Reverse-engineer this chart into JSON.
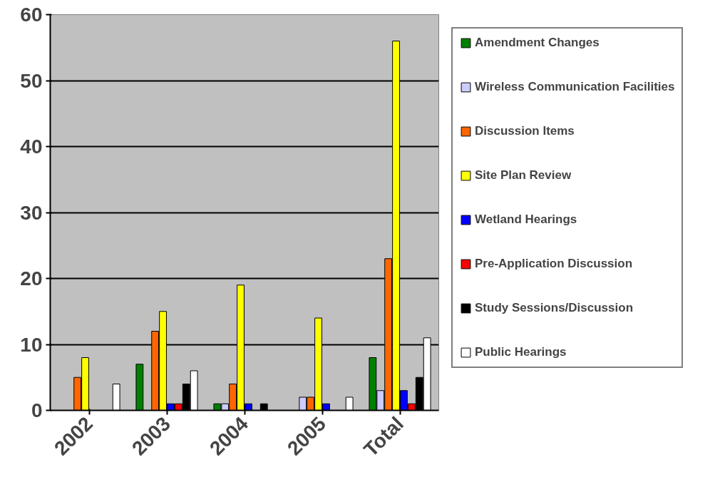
{
  "chart_data": {
    "type": "bar",
    "categories": [
      "2002",
      "2003",
      "2004",
      "2005",
      "Total"
    ],
    "series": [
      {
        "name": "Amendment Changes",
        "color": "#008000",
        "values": [
          0,
          7,
          1,
          0,
          8
        ]
      },
      {
        "name": "Wireless Communication Facilities",
        "color": "#ccccff",
        "values": [
          0,
          0,
          1,
          2,
          3
        ]
      },
      {
        "name": "Discussion Items",
        "color": "#ff6600",
        "values": [
          5,
          12,
          4,
          2,
          23
        ]
      },
      {
        "name": "Site Plan Review",
        "color": "#ffff00",
        "values": [
          8,
          15,
          19,
          14,
          56
        ]
      },
      {
        "name": "Wetland Hearings",
        "color": "#0000ff",
        "values": [
          0,
          1,
          1,
          1,
          3
        ]
      },
      {
        "name": "Pre-Application Discussion",
        "color": "#ff0000",
        "values": [
          0,
          1,
          0,
          0,
          1
        ]
      },
      {
        "name": "Study Sessions/Discussion",
        "color": "#000000",
        "values": [
          0,
          4,
          1,
          0,
          5
        ]
      },
      {
        "name": "Public Hearings",
        "color": "#ffffff",
        "values": [
          4,
          6,
          0,
          2,
          11
        ]
      }
    ],
    "ylim": [
      0,
      60
    ],
    "yticks": [
      0,
      10,
      20,
      30,
      40,
      50,
      60
    ],
    "grid": "y",
    "legend": "right"
  }
}
